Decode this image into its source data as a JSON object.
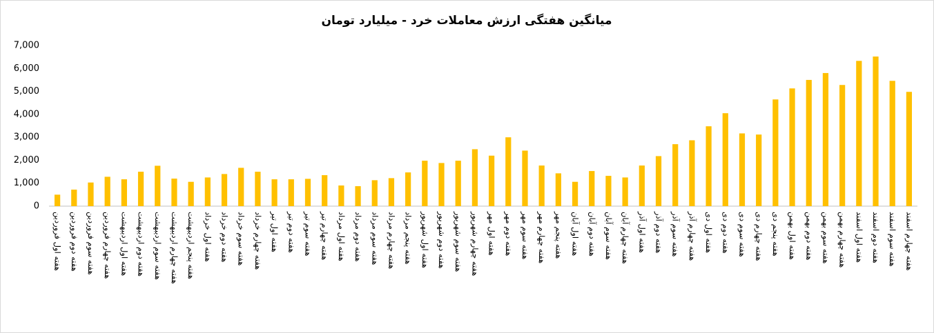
{
  "chart_data": {
    "type": "bar",
    "title": "میانگین هفتگی ارزش معاملات خرد - میلیارد تومان",
    "categories": [
      "هفته اول فروردین",
      "هفته دوم فروردین",
      "هفته سوم فروردین",
      "هفته چهارم فروردین",
      "هفته اول اردیبهشت",
      "هفته دوم اردیبهشت",
      "هفته سوم اردیبهشت",
      "هفته چهارم اردیبهشت",
      "هفته پنجم اردیبهشت",
      "هفته اول خرداد",
      "هفته دوم خرداد",
      "هفته سوم خرداد",
      "هفته چهارم خرداد",
      "هفته اول تیر",
      "هفته دوم تیر",
      "هفته سوم تیر",
      "هفته چهارم تیر",
      "هفته اول مرداد",
      "هفته دوم مرداد",
      "هفته سوم مرداد",
      "هفته چهارم مرداد",
      "هفته پنجم مرداد",
      "هفته اول شهریور",
      "هفته دوم شهریور",
      "هفته سوم شهریور",
      "هفته چهارم شهریور",
      "هفته اول مهر",
      "هفته دوم مهر",
      "هفته سوم مهر",
      "هفته چهارم مهر",
      "هفته پنجم مهر",
      "هفته اول آبان",
      "هفته دوم آبان",
      "هفته سوم آبان",
      "هفته چهارم آبان",
      "هفته اول آذر",
      "هفته دوم آذر",
      "هفته سوم آذر",
      "هفته چهارم آذر",
      "هفته اول دی",
      "هفته دوم دی",
      "هفته سوم دی",
      "هفته چهارم دی",
      "هفته پنجم دی",
      "هفته اول بهمن",
      "هفته دوم بهمن",
      "هفته سوم بهمن",
      "هفته چهارم بهمن",
      "هفته اول اسفند",
      "هفته دوم اسفند",
      "هفته سوم اسفند",
      "هفته چهارم اسفند"
    ],
    "values": [
      500,
      720,
      1030,
      1280,
      1170,
      1500,
      1760,
      1200,
      1060,
      1250,
      1400,
      1670,
      1500,
      1170,
      1170,
      1190,
      1350,
      900,
      870,
      1130,
      1220,
      1470,
      1980,
      1880,
      1980,
      2480,
      2200,
      3000,
      2420,
      1770,
      1430,
      1060,
      1530,
      1320,
      1250,
      1770,
      2180,
      2700,
      2870,
      3480,
      4050,
      3170,
      3120,
      4650,
      5130,
      5500,
      5800,
      5280,
      6330,
      6520,
      5460,
      4980
    ],
    "color": "#ffc000",
    "ylim": [
      0,
      7000
    ],
    "yticks": [
      0,
      {
        "value": 1000,
        "label": "1,000"
      },
      {
        "value": 2000,
        "label": "2,000"
      },
      {
        "value": 3000,
        "label": "3,000"
      },
      {
        "value": 4000,
        "label": "4,000"
      },
      {
        "value": 5000,
        "label": "5,000"
      },
      {
        "value": 6000,
        "label": "6,000"
      },
      {
        "value": 7000,
        "label": "7,000"
      }
    ],
    "grid": false
  }
}
